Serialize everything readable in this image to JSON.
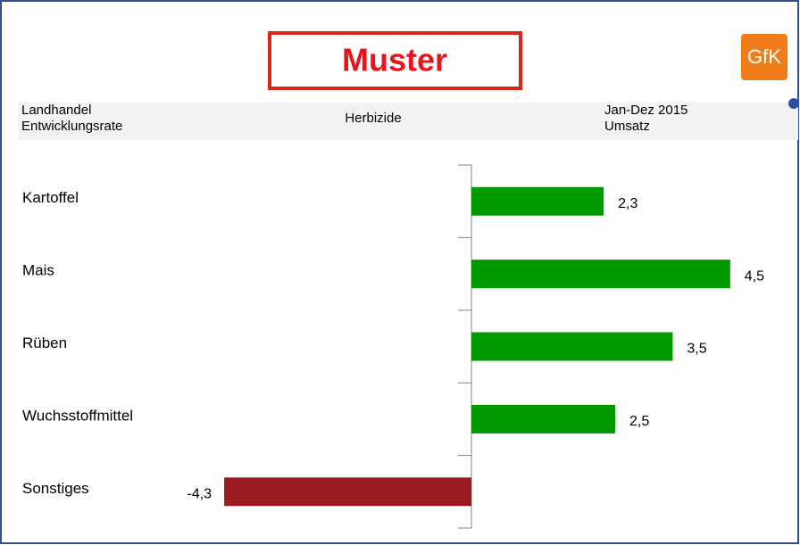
{
  "header": {
    "stamp": "Muster",
    "logo": "GfK",
    "left_line1": "Landhandel",
    "left_line2": "Entwicklungsrate",
    "center": "Herbizide",
    "right_line1": "Jan-Dez 2015",
    "right_line2": "Umsatz"
  },
  "chart_data": {
    "type": "hbar",
    "categories": [
      "Kartoffel",
      "Mais",
      "Rüben",
      "Wuchsstoffmittel",
      "Sonstiges"
    ],
    "values": [
      2.3,
      4.5,
      3.5,
      2.5,
      -4.3
    ],
    "value_labels": [
      "2,3",
      "4,5",
      "3,5",
      "2,5",
      "-4,3"
    ],
    "positive_color": "#009900",
    "negative_color": "#9b1c20",
    "xlim": [
      -5,
      5
    ]
  }
}
